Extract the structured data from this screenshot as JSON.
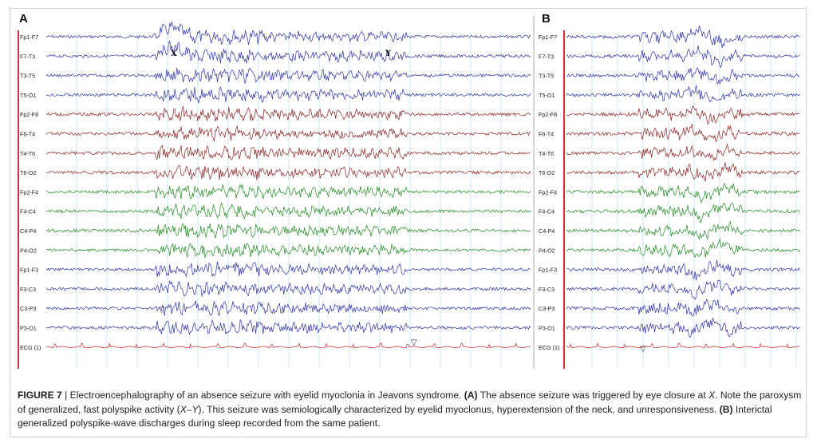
{
  "figure": {
    "panels": [
      {
        "letter": "A",
        "channels": [
          "Fp1-F7",
          "F7-T3",
          "T3-T5",
          "T5-O1",
          "Fp2-F8",
          "F8-T4",
          "T4-T6",
          "T6-O2",
          "Fp2-F4",
          "F4-C4",
          "C4-P4",
          "P4-O2",
          "Fp1-F3",
          "F3-C3",
          "C3-P3",
          "P3-O1",
          "ECG (1)"
        ],
        "markers": [
          "X",
          "Y"
        ],
        "triangles": [
          "▽",
          "▽"
        ]
      },
      {
        "letter": "B",
        "channels": [
          "Fp1-F7",
          "F7-T3",
          "T3-T5",
          "T5-O1",
          "Fp2-F8",
          "F8-T4",
          "T4-T6",
          "T6-O2",
          "Fp2-F4",
          "F4-C4",
          "C4-P4",
          "P4-O2",
          "Fp1-F3",
          "F3-C3",
          "C3-P3",
          "P3-O1",
          "ECG (1)"
        ],
        "triangles": [
          "▽"
        ]
      }
    ],
    "channel_group_colors": {
      "left": "#2b2fa8",
      "right": "#8b1f1f",
      "parasagittal_right": "#1e8a1e",
      "parasagittal_left": "#2b2fa8",
      "ecg": "#cc2222"
    }
  },
  "caption": {
    "label": "FIGURE 7",
    "separator": " | ",
    "text1": "Electroencephalography of an absence seizure with eyelid myoclonia in Jeavons syndrome. ",
    "a_ref": "(A)",
    "text2": " The absence seizure was triggered by eye closure at ",
    "x_ref": "X",
    "text3": ". Note the paroxysm of generalized, fast polyspike activity (",
    "xy_ref": "X–Y",
    "text4": "). This seizure was semiologically characterized by eyelid myoclonus, hyperextension of the neck, and unresponsiveness. ",
    "b_ref": "(B)",
    "text5": " Interictal generalized polyspike-wave discharges during sleep recorded from the same patient."
  }
}
